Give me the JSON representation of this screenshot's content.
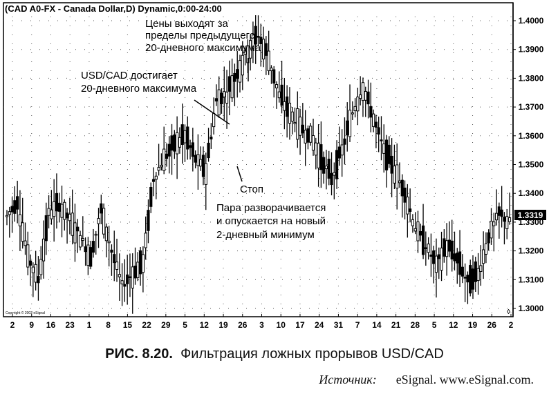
{
  "chart_data": {
    "type": "candlestick",
    "title": "(CAD A0-FX - Canada Dollar,D) Dynamic,0:00-24:00",
    "y_ticks": [
      "1.4000",
      "1.3900",
      "1.3800",
      "1.3700",
      "1.3600",
      "1.3500",
      "1.3400",
      "1.3300",
      "1.3200",
      "1.3100",
      "1.3000"
    ],
    "ylim": [
      1.297,
      1.406
    ],
    "last_price": "1.3319",
    "x_ticks": [
      "2",
      "9",
      "16",
      "23",
      "1",
      "8",
      "15",
      "22",
      "29",
      "5",
      "12",
      "19",
      "26",
      "3",
      "10",
      "17",
      "24",
      "31",
      "7",
      "14",
      "21",
      "28",
      "5",
      "12",
      "19",
      "26",
      "2"
    ],
    "copyright": "Copyright © 2002 eSignal",
    "grid": true,
    "close_path": [
      [
        0,
        1.332
      ],
      [
        4,
        1.337
      ],
      [
        8,
        1.318
      ],
      [
        12,
        1.31
      ],
      [
        16,
        1.333
      ],
      [
        20,
        1.336
      ],
      [
        24,
        1.331
      ],
      [
        28,
        1.325
      ],
      [
        32,
        1.318
      ],
      [
        36,
        1.334
      ],
      [
        40,
        1.32
      ],
      [
        44,
        1.308
      ],
      [
        48,
        1.312
      ],
      [
        52,
        1.316
      ],
      [
        56,
        1.345
      ],
      [
        60,
        1.352
      ],
      [
        64,
        1.357
      ],
      [
        68,
        1.36
      ],
      [
        72,
        1.352
      ],
      [
        76,
        1.348
      ],
      [
        80,
        1.372
      ],
      [
        84,
        1.375
      ],
      [
        88,
        1.382
      ],
      [
        92,
        1.39
      ],
      [
        96,
        1.395
      ],
      [
        100,
        1.387
      ],
      [
        104,
        1.374
      ],
      [
        108,
        1.368
      ],
      [
        112,
        1.363
      ],
      [
        116,
        1.36
      ],
      [
        120,
        1.352
      ],
      [
        124,
        1.345
      ],
      [
        128,
        1.355
      ],
      [
        132,
        1.368
      ],
      [
        136,
        1.377
      ],
      [
        140,
        1.366
      ],
      [
        144,
        1.355
      ],
      [
        148,
        1.348
      ],
      [
        152,
        1.34
      ],
      [
        156,
        1.328
      ],
      [
        160,
        1.322
      ],
      [
        164,
        1.315
      ],
      [
        168,
        1.322
      ],
      [
        172,
        1.317
      ],
      [
        176,
        1.309
      ],
      [
        180,
        1.312
      ],
      [
        184,
        1.325
      ],
      [
        188,
        1.333
      ],
      [
        192,
        1.33
      ]
    ],
    "annotations": {
      "breakout": [
        "Цены выходят за",
        "пределы предыдущего",
        "20-дневного максимума"
      ],
      "high20": [
        "USD/CAD достигает",
        "20-дневного максимума"
      ],
      "stop": "Стоп",
      "reversal": [
        "Пара разворачивается",
        "и опускается на новый",
        "2-дневный минимум"
      ]
    }
  },
  "caption": {
    "label": "РИС. 8.20.",
    "text": "Фильтрация ложных прорывов USD/CAD"
  },
  "source": {
    "label": "Источник:",
    "text": "eSignal. www.eSignal.com."
  }
}
